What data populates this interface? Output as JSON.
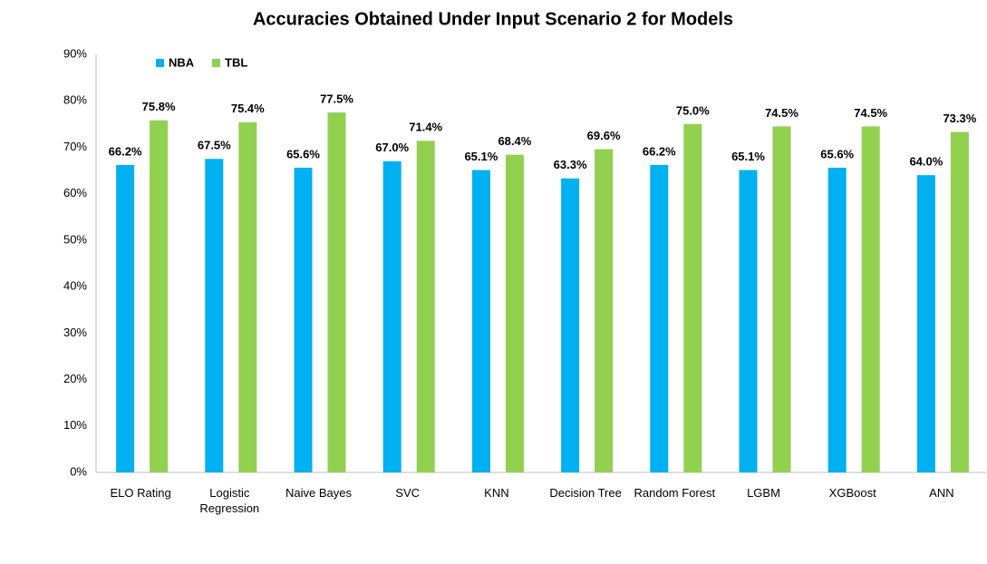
{
  "chart_data": {
    "type": "bar",
    "title": "Accuracies Obtained Under Input Scenario 2 for Models",
    "categories": [
      "ELO Rating",
      "Logistic Regression",
      "Naive Bayes",
      "SVC",
      "KNN",
      "Decision Tree",
      "Random Forest",
      "LGBM",
      "XGBoost",
      "ANN"
    ],
    "series": [
      {
        "name": "NBA",
        "color": "#00b0f0",
        "values": [
          66.2,
          67.5,
          65.6,
          67.0,
          65.1,
          63.3,
          66.2,
          65.1,
          65.6,
          64.0
        ],
        "value_labels": [
          "66.2%",
          "67.5%",
          "65.6%",
          "67.0%",
          "65.1%",
          "63.3%",
          "66.2%",
          "65.1%",
          "65.6%",
          "64.0%"
        ]
      },
      {
        "name": "TBL",
        "color": "#92d050",
        "values": [
          75.8,
          75.4,
          77.5,
          71.4,
          68.4,
          69.6,
          75.0,
          74.5,
          74.5,
          73.3
        ],
        "value_labels": [
          "75.8%",
          "75.4%",
          "77.5%",
          "71.4%",
          "68.4%",
          "69.6%",
          "75.0%",
          "74.5%",
          "74.5%",
          "73.3%"
        ]
      }
    ],
    "ylim": [
      0,
      90
    ],
    "yticks": [
      {
        "value": 0,
        "label": "0%"
      },
      {
        "value": 10,
        "label": "10%"
      },
      {
        "value": 20,
        "label": "20%"
      },
      {
        "value": 30,
        "label": "30%"
      },
      {
        "value": 40,
        "label": "40%"
      },
      {
        "value": 50,
        "label": "50%"
      },
      {
        "value": 60,
        "label": "60%"
      },
      {
        "value": 70,
        "label": "70%"
      },
      {
        "value": 80,
        "label": "80%"
      },
      {
        "value": 90,
        "label": "90%"
      }
    ],
    "legend": "top-left",
    "grid": false
  }
}
